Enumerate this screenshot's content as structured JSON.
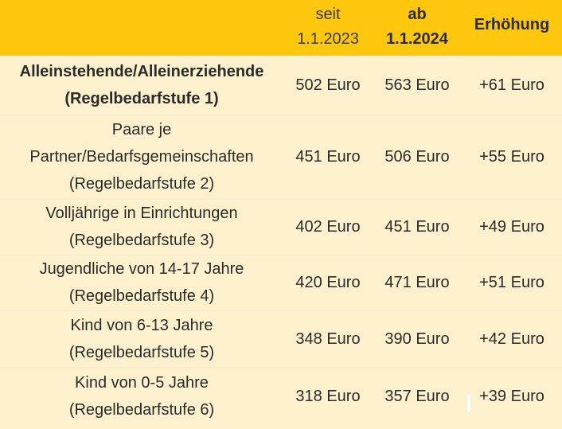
{
  "header": {
    "col_label": "",
    "col_since_top": "seit",
    "col_since_bottom": "1.1.2023",
    "col_from_top": "ab",
    "col_from_bottom": "1.1.2024",
    "col_increase": "Erhöhung"
  },
  "rows": [
    {
      "label_lines": [
        "Alleinstehende/Alleinerziehende",
        "(Regelbedarfstufe 1)"
      ],
      "since_2023": "502 Euro",
      "from_2024": "563 Euro",
      "increase": "+61 Euro"
    },
    {
      "label_lines": [
        "Paare je",
        "Partner/Bedarfsgemeinschaften",
        "(Regelbedarfstufe 2)"
      ],
      "since_2023": "451 Euro",
      "from_2024": "506 Euro",
      "increase": "+55 Euro"
    },
    {
      "label_lines": [
        "Volljährige in Einrichtungen",
        "(Regelbedarfstufe 3)"
      ],
      "since_2023": "402 Euro",
      "from_2024": "451 Euro",
      "increase": "+49 Euro"
    },
    {
      "label_lines": [
        "Jugendliche von 14-17 Jahre",
        "(Regelbedarfstufe 4)"
      ],
      "since_2023": "420 Euro",
      "from_2024": "471 Euro",
      "increase": "+51 Euro"
    },
    {
      "label_lines": [
        "Kind von 6-13 Jahre",
        "(Regelbedarfstufe 5)"
      ],
      "since_2023": "348 Euro",
      "from_2024": "390 Euro",
      "increase": "+42 Euro"
    },
    {
      "label_lines": [
        "Kind von 0-5 Jahre",
        "(Regelbedarfstufe 6)"
      ],
      "since_2023": "318 Euro",
      "from_2024": "357 Euro",
      "increase": "+39 Euro"
    }
  ],
  "colors": {
    "header_bg": "#fcc70c",
    "body_bg": "#fdf1cd",
    "text": "#2b2b2b"
  }
}
